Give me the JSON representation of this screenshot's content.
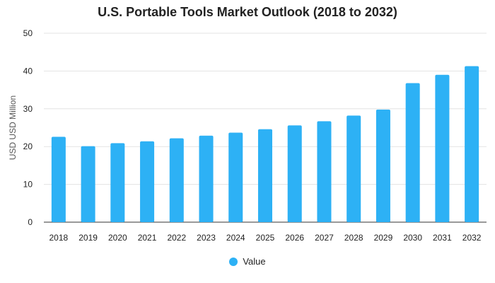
{
  "chart_data": {
    "type": "bar",
    "title": "U.S. Portable Tools Market Outlook (2018 to 2032)",
    "xlabel": "",
    "ylabel": "USD USD Million",
    "categories": [
      "2018",
      "2019",
      "2020",
      "2021",
      "2022",
      "2023",
      "2024",
      "2025",
      "2026",
      "2027",
      "2028",
      "2029",
      "2030",
      "2031",
      "2032"
    ],
    "series": [
      {
        "name": "Value",
        "color": "#2db1f5",
        "values": [
          22.6,
          20.1,
          20.9,
          21.4,
          22.2,
          22.9,
          23.7,
          24.6,
          25.6,
          26.7,
          28.2,
          29.8,
          36.8,
          39.0,
          41.3
        ]
      }
    ],
    "ylim": [
      0,
      50
    ],
    "yticks": [
      0,
      10,
      20,
      30,
      40,
      50
    ],
    "grid": true,
    "legend": "bottom-center"
  }
}
